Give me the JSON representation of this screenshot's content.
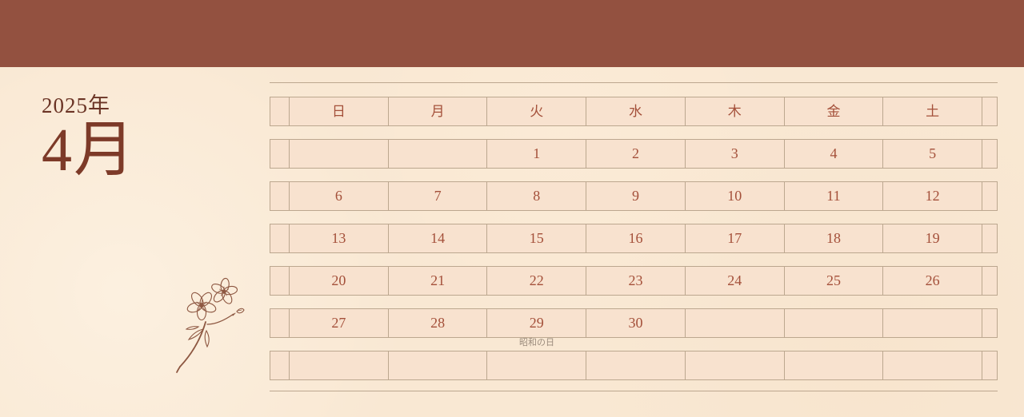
{
  "title": {
    "year": "2025年",
    "month": "4月"
  },
  "calendar": {
    "weekdays": [
      "日",
      "月",
      "火",
      "水",
      "木",
      "金",
      "土"
    ],
    "weeks": [
      [
        "",
        "",
        "1",
        "2",
        "3",
        "4",
        "5"
      ],
      [
        "6",
        "7",
        "8",
        "9",
        "10",
        "11",
        "12"
      ],
      [
        "13",
        "14",
        "15",
        "16",
        "17",
        "18",
        "19"
      ],
      [
        "20",
        "21",
        "22",
        "23",
        "24",
        "25",
        "26"
      ],
      [
        "27",
        "28",
        "29",
        "30",
        "",
        "",
        ""
      ],
      [
        "",
        "",
        "",
        "",
        "",
        "",
        ""
      ]
    ],
    "holiday_note": {
      "label": "昭和の日",
      "under_date": "29",
      "column": "火"
    }
  },
  "decor": {
    "flower": "sakura-line-illustration"
  },
  "colors": {
    "top_bar": "#935140",
    "background": "#f9e8d3",
    "cell_fill": "#f8e2cf",
    "grid_line": "#bca78f",
    "date_text": "#a4503a",
    "year_text": "#6b3425",
    "month_text": "#7d3a28",
    "note_text": "#9b8b7c"
  }
}
